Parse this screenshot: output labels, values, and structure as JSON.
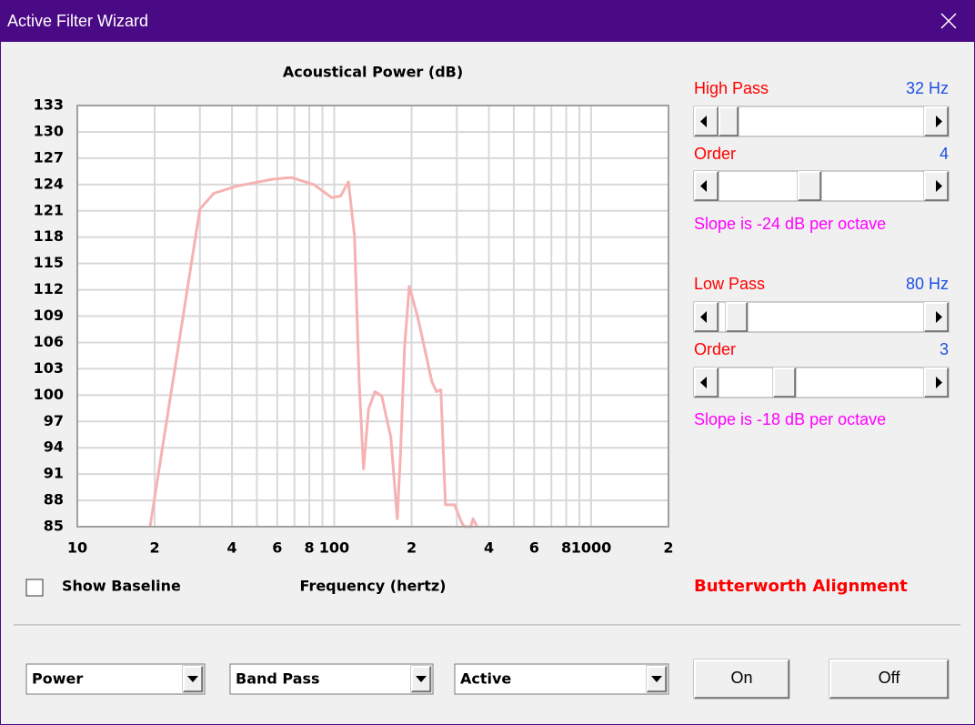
{
  "window": {
    "title": "Active Filter Wizard"
  },
  "chart_data": {
    "type": "line",
    "title": "Acoustical Power (dB)",
    "x_label": "Frequency (hertz)",
    "log_x": true,
    "grid": true,
    "color": "#f6b2b2",
    "x": [
      19.2,
      30,
      34,
      41.6,
      57.7,
      67.9,
      83.2,
      97.9,
      106,
      113.6,
      120,
      125,
      130,
      136,
      144,
      153,
      166,
      176,
      181,
      188,
      196,
      212,
      240,
      250,
      260,
      271,
      294,
      314,
      322,
      340,
      347,
      360
    ],
    "values": [
      85,
      121.2,
      123,
      123.8,
      124.6,
      124.8,
      124,
      122.5,
      122.7,
      124.3,
      118.1,
      101.5,
      91.6,
      98.4,
      100.4,
      99.9,
      95.2,
      85.9,
      93.2,
      105.6,
      112.4,
      108.7,
      101.5,
      100.4,
      100.6,
      87.5,
      87.5,
      85.4,
      85,
      85,
      85.9,
      85
    ],
    "xlim": [
      10,
      2000
    ],
    "xticks": [
      10,
      {
        "value": 20,
        "label": "2"
      },
      {
        "value": 40,
        "label": "4"
      },
      {
        "value": 60,
        "label": "6"
      },
      {
        "value": 80,
        "label": "8"
      },
      100,
      {
        "value": 200,
        "label": "2"
      },
      {
        "value": 400,
        "label": "4"
      },
      {
        "value": 600,
        "label": "6"
      },
      {
        "value": 800,
        "label": "8"
      },
      1000,
      {
        "value": 2000,
        "label": "2"
      }
    ],
    "xminor_ticks": [
      30,
      50,
      70,
      90,
      300,
      500,
      700,
      900
    ],
    "ylim": [
      85,
      133
    ],
    "yticks": [
      85,
      88,
      91,
      94,
      97,
      100,
      103,
      106,
      109,
      112,
      115,
      118,
      121,
      124,
      127,
      130,
      133
    ]
  },
  "controls": {
    "high_pass": {
      "label": "High Pass",
      "value": "32 Hz"
    },
    "high_order": {
      "label": "Order",
      "value": "4"
    },
    "high_slope": "Slope is -24 dB per octave",
    "low_pass": {
      "label": "Low Pass",
      "value": "80 Hz"
    },
    "low_order": {
      "label": "Order",
      "value": "3"
    },
    "low_slope": "Slope is -18 dB per octave",
    "show_baseline": "Show Baseline",
    "alignment": "Butterworth Alignment",
    "dropdowns": [
      "Power",
      "Band Pass",
      "Active"
    ],
    "buttons": [
      "On",
      "Off"
    ]
  }
}
